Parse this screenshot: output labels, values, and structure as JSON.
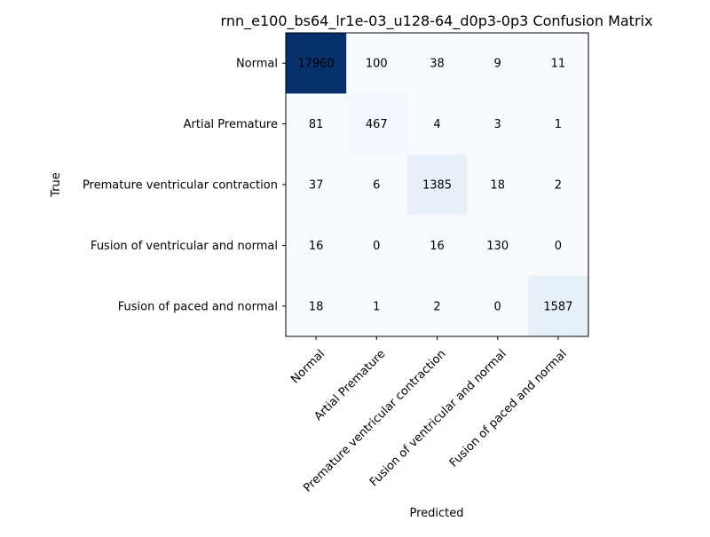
{
  "chart_data": {
    "type": "heatmap",
    "title": "rnn_e100_bs64_lr1e-03_u128-64_d0p3-0p3 Confusion Matrix",
    "xlabel": "Predicted",
    "ylabel": "True",
    "x_categories": [
      "Normal",
      "Artial Premature",
      "Premature ventricular contraction",
      "Fusion of ventricular and normal",
      "Fusion of paced and normal"
    ],
    "y_categories": [
      "Normal",
      "Artial Premature",
      "Premature ventricular contraction",
      "Fusion of ventricular and normal",
      "Fusion of paced and normal"
    ],
    "values": [
      [
        17960,
        100,
        38,
        9,
        11
      ],
      [
        81,
        467,
        4,
        3,
        1
      ],
      [
        37,
        6,
        1385,
        18,
        2
      ],
      [
        16,
        0,
        16,
        130,
        0
      ],
      [
        18,
        1,
        2,
        0,
        1587
      ]
    ],
    "colormap": "Blues",
    "color_range": [
      0,
      17960
    ],
    "grid": false,
    "x_tick_rotation_deg": 45
  }
}
